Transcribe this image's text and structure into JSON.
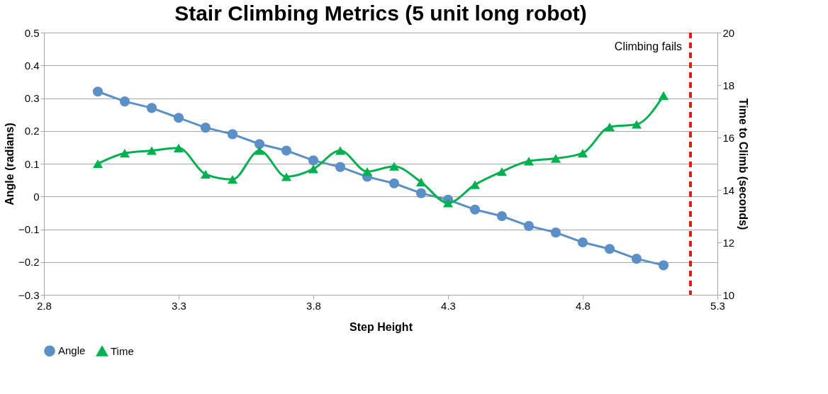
{
  "chart_data": {
    "type": "line",
    "title": "Stair Climbing Metrics (5 unit long robot)",
    "xlabel": "Step Height",
    "ylabel": "Angle (radians)",
    "y2label": "Time to Climb (seconds)",
    "x": [
      3.0,
      3.1,
      3.2,
      3.3,
      3.4,
      3.5,
      3.6,
      3.7,
      3.8,
      3.9,
      4.0,
      4.1,
      4.2,
      4.3,
      4.4,
      4.5,
      4.6,
      4.7,
      4.8,
      4.9,
      5.0,
      5.1
    ],
    "series": [
      {
        "name": "Angle",
        "color": "#5b8fc7",
        "marker": "circle",
        "values": [
          0.32,
          0.29,
          0.27,
          0.24,
          0.21,
          0.19,
          0.16,
          0.14,
          0.11,
          0.09,
          0.06,
          0.04,
          0.01,
          -0.01,
          -0.04,
          -0.06,
          -0.09,
          -0.11,
          -0.14,
          -0.16,
          -0.19,
          -0.21
        ]
      },
      {
        "name": "Time",
        "color": "#00b050",
        "marker": "triangle",
        "axis": "y2",
        "values": [
          15.0,
          15.4,
          15.5,
          15.6,
          14.6,
          14.4,
          15.5,
          14.5,
          14.8,
          15.5,
          14.7,
          14.9,
          14.3,
          13.5,
          14.2,
          14.7,
          15.1,
          15.2,
          15.4,
          16.4,
          16.5,
          17.6
        ]
      }
    ],
    "xlim": [
      2.8,
      5.3
    ],
    "xticks": [
      2.8,
      3.3,
      3.8,
      4.3,
      4.8,
      5.3
    ],
    "ylim": [
      -0.3,
      0.5
    ],
    "yticks": [
      -0.3,
      -0.2,
      -0.1,
      0,
      0.1,
      0.2,
      0.3,
      0.4,
      0.5
    ],
    "y2lim": [
      10,
      20
    ],
    "y2ticks": [
      10,
      12,
      14,
      16,
      18,
      20
    ],
    "ref_lines": [
      {
        "axis": "x",
        "value": 5.2,
        "label": "Climbing fails",
        "color": "#d9230f",
        "line_style": "dashed"
      }
    ],
    "grid": "y",
    "legend": "bottom",
    "line_style": "solid"
  }
}
